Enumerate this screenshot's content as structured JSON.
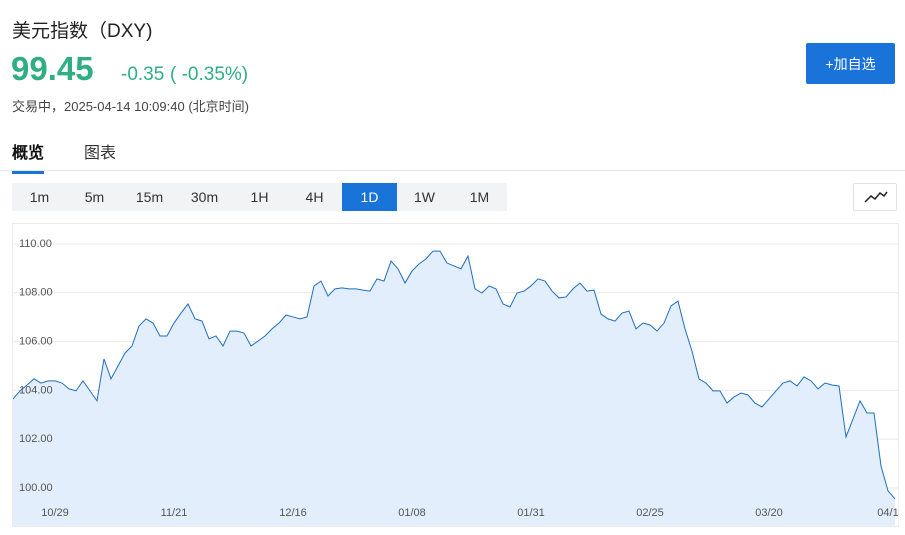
{
  "header": {
    "title": "美元指数（DXY)",
    "price": "99.45",
    "change": "-0.35",
    "change_pct": "( -0.35%)",
    "status": "交易中，2025-04-14 10:09:40 (北京时间)",
    "button": "+加自选"
  },
  "tabs": [
    "概览",
    "图表"
  ],
  "periods": [
    "1m",
    "5m",
    "15m",
    "30m",
    "1H",
    "4H",
    "1D",
    "1W",
    "1M"
  ],
  "chart_data": {
    "type": "area",
    "color": "#1f6fc0",
    "fill": "#e2eefb",
    "grid": true,
    "ylim": [
      98.44,
      110.82
    ],
    "yticks": [
      {
        "value": 100,
        "label": "100.00"
      },
      {
        "value": 102,
        "label": "102.00"
      },
      {
        "value": 104,
        "label": "104.00"
      },
      {
        "value": 106,
        "label": "106.00"
      },
      {
        "value": 108,
        "label": "108.00"
      },
      {
        "value": 110,
        "label": "110.00"
      }
    ],
    "categories": [
      null,
      null,
      null,
      null,
      null,
      null,
      "10/29",
      null,
      null,
      null,
      null,
      null,
      null,
      null,
      null,
      null,
      null,
      null,
      null,
      null,
      null,
      null,
      null,
      "11/21",
      null,
      null,
      null,
      null,
      null,
      null,
      null,
      null,
      null,
      null,
      null,
      null,
      null,
      null,
      null,
      null,
      "12/16",
      null,
      null,
      null,
      null,
      null,
      null,
      null,
      null,
      null,
      null,
      null,
      null,
      null,
      null,
      null,
      null,
      "01/08",
      null,
      null,
      null,
      null,
      null,
      null,
      null,
      null,
      null,
      null,
      null,
      null,
      null,
      null,
      null,
      null,
      "01/31",
      null,
      null,
      null,
      null,
      null,
      null,
      null,
      null,
      null,
      null,
      null,
      null,
      null,
      null,
      null,
      null,
      "02/25",
      null,
      null,
      null,
      null,
      null,
      null,
      null,
      null,
      null,
      null,
      null,
      null,
      null,
      null,
      null,
      null,
      "03/20",
      null,
      null,
      null,
      null,
      null,
      null,
      null,
      null,
      null,
      null,
      null,
      null,
      null,
      null,
      null,
      null,
      "04/1",
      null
    ],
    "values": [
      103.65,
      103.98,
      104.22,
      104.47,
      104.3,
      104.39,
      104.39,
      104.3,
      104.06,
      103.98,
      104.39,
      103.98,
      103.57,
      105.29,
      104.47,
      105.0,
      105.53,
      105.82,
      106.64,
      106.93,
      106.76,
      106.23,
      106.23,
      106.76,
      107.17,
      107.54,
      106.93,
      106.84,
      106.11,
      106.23,
      105.82,
      106.43,
      106.43,
      106.35,
      105.82,
      106.02,
      106.23,
      106.52,
      106.76,
      107.09,
      107.01,
      106.93,
      107.01,
      108.28,
      108.48,
      107.87,
      108.16,
      108.2,
      108.16,
      108.16,
      108.11,
      108.07,
      108.57,
      108.48,
      109.3,
      108.98,
      108.4,
      108.89,
      109.18,
      109.39,
      109.71,
      109.71,
      109.22,
      109.1,
      108.98,
      109.51,
      108.16,
      107.99,
      108.28,
      108.16,
      107.54,
      107.42,
      107.99,
      108.07,
      108.28,
      108.57,
      108.48,
      108.07,
      107.79,
      107.83,
      108.16,
      108.4,
      108.07,
      108.11,
      107.13,
      106.93,
      106.84,
      107.17,
      107.25,
      106.52,
      106.76,
      106.68,
      106.43,
      106.76,
      107.46,
      107.66,
      106.52,
      105.61,
      104.47,
      104.3,
      103.98,
      103.98,
      103.48,
      103.73,
      103.89,
      103.81,
      103.48,
      103.32,
      103.65,
      103.98,
      104.3,
      104.39,
      104.18,
      104.55,
      104.39,
      104.06,
      104.3,
      104.22,
      104.18,
      102.09,
      102.83,
      103.57,
      103.07,
      103.07,
      100.9,
      99.88,
      99.55
    ]
  }
}
